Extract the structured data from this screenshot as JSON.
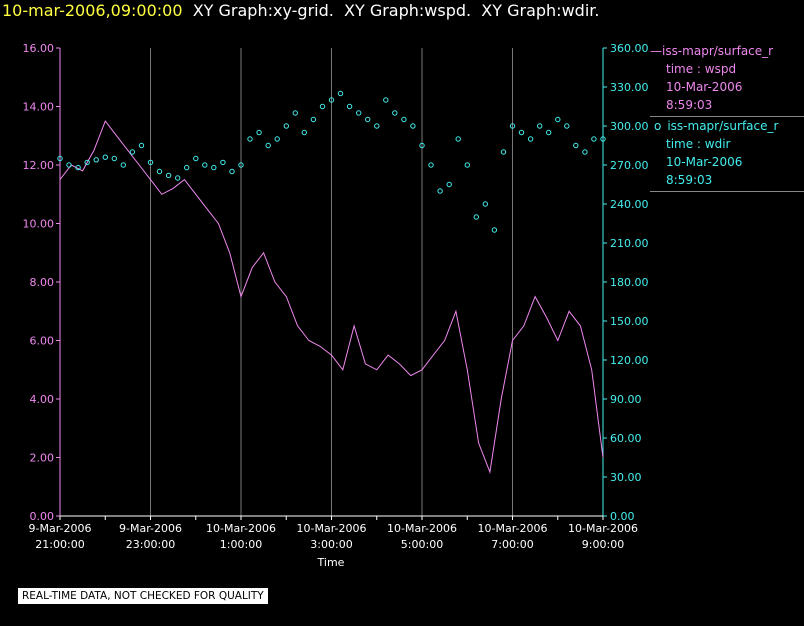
{
  "header": {
    "timestamp": "10-mar-2006,09:00:00",
    "titles": [
      "XY Graph:xy-grid.",
      "XY Graph:wspd.",
      "XY Graph:wdir."
    ]
  },
  "legend": [
    {
      "symbol": "—",
      "label": "iss-mapr/surface_r",
      "var": "time : wspd",
      "date": "10-Mar-2006",
      "time": "8:59:03",
      "color": "#ee88ee"
    },
    {
      "symbol": "o",
      "label": "iss-mapr/surface_r",
      "var": "time : wdir",
      "date": "10-Mar-2006",
      "time": "8:59:03",
      "color": "#44eeee"
    }
  ],
  "footer": {
    "quality_note": "REAL-TIME DATA, NOT CHECKED FOR QUALITY"
  },
  "chart_data": {
    "type": "line",
    "xlabel": "Time",
    "x_range_hours": [
      21.0,
      33.0
    ],
    "x_ticks": [
      {
        "date": "9-Mar-2006",
        "time": "21:00:00",
        "hour": 21.0
      },
      {
        "date": "9-Mar-2006",
        "time": "23:00:00",
        "hour": 23.0
      },
      {
        "date": "10-Mar-2006",
        "time": "1:00:00",
        "hour": 25.0
      },
      {
        "date": "10-Mar-2006",
        "time": "3:00:00",
        "hour": 27.0
      },
      {
        "date": "10-Mar-2006",
        "time": "5:00:00",
        "hour": 29.0
      },
      {
        "date": "10-Mar-2006",
        "time": "7:00:00",
        "hour": 31.0
      },
      {
        "date": "10-Mar-2006",
        "time": "9:00:00",
        "hour": 33.0
      }
    ],
    "y_left": {
      "range": [
        0,
        16
      ],
      "ticks": [
        "0.00",
        "2.00",
        "4.00",
        "6.00",
        "8.00",
        "10.00",
        "12.00",
        "14.00",
        "16.00"
      ],
      "color": "#ee88ee"
    },
    "y_right": {
      "range": [
        0,
        360
      ],
      "ticks": [
        "0.00",
        "30.00",
        "60.00",
        "90.00",
        "120.00",
        "150.00",
        "180.00",
        "210.00",
        "240.00",
        "270.00",
        "300.00",
        "330.00",
        "360.00"
      ],
      "color": "#44eeee"
    },
    "grid": "vertical-only",
    "series": [
      {
        "name": "iss-mapr/surface_r time : wspd",
        "axis": "left",
        "style": "line",
        "color": "#ee88ee",
        "hours": [
          21.0,
          21.25,
          21.5,
          21.75,
          22.0,
          22.25,
          22.5,
          22.75,
          23.0,
          23.25,
          23.5,
          23.75,
          24.0,
          24.25,
          24.5,
          24.75,
          25.0,
          25.25,
          25.5,
          25.75,
          26.0,
          26.25,
          26.5,
          26.75,
          27.0,
          27.25,
          27.5,
          27.75,
          28.0,
          28.25,
          28.5,
          28.75,
          29.0,
          29.25,
          29.5,
          29.75,
          30.0,
          30.25,
          30.5,
          30.75,
          31.0,
          31.25,
          31.5,
          31.75,
          32.0,
          32.25,
          32.5,
          32.75,
          33.0
        ],
        "values": [
          11.5,
          12.0,
          11.8,
          12.5,
          13.5,
          13.0,
          12.5,
          12.0,
          11.5,
          11.0,
          11.2,
          11.5,
          11.0,
          10.5,
          10.0,
          9.0,
          7.5,
          8.5,
          9.0,
          8.0,
          7.5,
          6.5,
          6.0,
          5.8,
          5.5,
          5.0,
          6.5,
          5.2,
          5.0,
          5.5,
          5.2,
          4.8,
          5.0,
          5.5,
          6.0,
          7.0,
          5.0,
          2.5,
          1.5,
          4.0,
          6.0,
          6.5,
          7.5,
          6.8,
          6.0,
          7.0,
          6.5,
          5.0,
          2.0
        ]
      },
      {
        "name": "iss-mapr/surface_r time : wdir",
        "axis": "right",
        "style": "points",
        "color": "#44eeee",
        "hours": [
          21.0,
          21.2,
          21.4,
          21.6,
          21.8,
          22.0,
          22.2,
          22.4,
          22.6,
          22.8,
          23.0,
          23.2,
          23.4,
          23.6,
          23.8,
          24.0,
          24.2,
          24.4,
          24.6,
          24.8,
          25.0,
          25.2,
          25.4,
          25.6,
          25.8,
          26.0,
          26.2,
          26.4,
          26.6,
          26.8,
          27.0,
          27.2,
          27.4,
          27.6,
          27.8,
          28.0,
          28.2,
          28.4,
          28.6,
          28.8,
          29.0,
          29.2,
          29.4,
          29.6,
          29.8,
          30.0,
          30.2,
          30.4,
          30.6,
          30.8,
          31.0,
          31.2,
          31.4,
          31.6,
          31.8,
          32.0,
          32.2,
          32.4,
          32.6,
          32.8,
          33.0
        ],
        "values": [
          275,
          270,
          268,
          272,
          274,
          276,
          275,
          270,
          280,
          285,
          272,
          265,
          262,
          260,
          268,
          275,
          270,
          268,
          272,
          265,
          270,
          290,
          295,
          285,
          290,
          300,
          310,
          295,
          305,
          315,
          320,
          325,
          315,
          310,
          305,
          300,
          320,
          310,
          305,
          300,
          285,
          270,
          250,
          255,
          290,
          270,
          230,
          240,
          220,
          280,
          300,
          295,
          290,
          300,
          295,
          305,
          300,
          285,
          280,
          290,
          290
        ]
      }
    ]
  }
}
